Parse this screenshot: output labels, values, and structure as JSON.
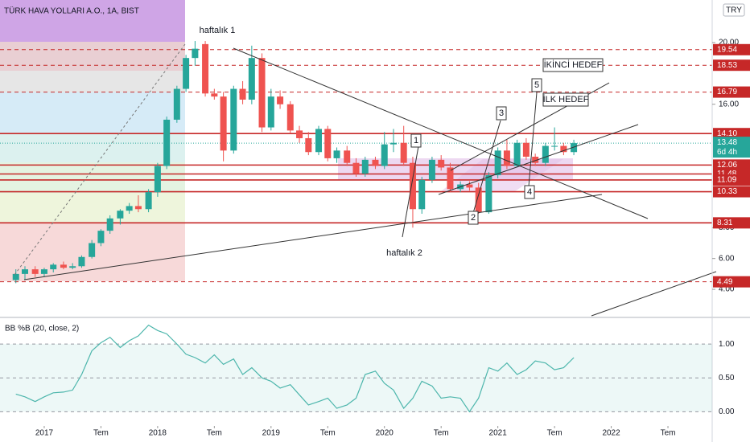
{
  "header": {
    "title": "TÜRK HAVA YOLLARI A.O., 1A, BIST",
    "currency": "TRY"
  },
  "chart_data": [
    {
      "type": "candlestick",
      "x": [
        2016.75,
        2016.83,
        2016.92,
        2017.0,
        2017.08,
        2017.17,
        2017.25,
        2017.33,
        2017.42,
        2017.5,
        2017.58,
        2017.67,
        2017.75,
        2017.83,
        2017.92,
        2018.0,
        2018.08,
        2018.17,
        2018.25,
        2018.33,
        2018.42,
        2018.5,
        2018.58,
        2018.67,
        2018.75,
        2018.83,
        2018.92,
        2019.0,
        2019.08,
        2019.17,
        2019.25,
        2019.33,
        2019.42,
        2019.5,
        2019.58,
        2019.67,
        2019.75,
        2019.83,
        2019.92,
        2020.0,
        2020.08,
        2020.17,
        2020.25,
        2020.33,
        2020.42,
        2020.5,
        2020.58,
        2020.67,
        2020.75,
        2020.83,
        2020.92,
        2021.0,
        2021.08,
        2021.17,
        2021.25,
        2021.33,
        2021.42,
        2021.5,
        2021.58,
        2021.67
      ],
      "open": [
        4.6,
        5.0,
        5.3,
        5.0,
        5.3,
        5.6,
        5.4,
        5.5,
        6.1,
        7.0,
        7.8,
        8.6,
        9.1,
        9.4,
        9.2,
        10.3,
        12.0,
        15.0,
        17.0,
        19.0,
        19.9,
        16.7,
        16.5,
        13.0,
        17.0,
        16.3,
        19.0,
        14.5,
        16.5,
        16.0,
        14.3,
        13.8,
        12.9,
        14.4,
        12.5,
        13.0,
        12.2,
        11.5,
        12.4,
        12.0,
        13.4,
        13.5,
        12.2,
        9.2,
        11.1,
        12.4,
        11.9,
        10.5,
        10.8,
        10.6,
        9.0,
        11.4,
        13.0,
        12.0,
        13.5,
        12.6,
        12.2,
        13.3,
        13.3,
        12.9
      ],
      "high": [
        5.3,
        5.5,
        5.5,
        5.4,
        5.7,
        5.8,
        5.7,
        6.2,
        7.2,
        7.9,
        8.8,
        9.2,
        9.6,
        10.1,
        10.5,
        12.2,
        15.2,
        17.2,
        19.2,
        20.1,
        20.1,
        17.0,
        16.8,
        17.2,
        17.5,
        19.8,
        19.3,
        17.0,
        16.9,
        16.2,
        14.6,
        14.2,
        14.6,
        14.6,
        13.2,
        13.3,
        12.5,
        12.6,
        12.6,
        14.2,
        14.4,
        14.6,
        12.6,
        11.3,
        12.6,
        12.7,
        12.2,
        11.0,
        11.0,
        10.9,
        11.6,
        13.2,
        13.7,
        13.7,
        13.8,
        12.8,
        13.5,
        14.5,
        13.5,
        13.7
      ],
      "low": [
        4.4,
        4.6,
        4.8,
        4.8,
        5.1,
        5.3,
        5.3,
        5.4,
        6.0,
        6.8,
        7.6,
        8.2,
        8.9,
        9.0,
        9.0,
        10.0,
        11.8,
        14.8,
        16.8,
        18.5,
        16.5,
        16.3,
        12.3,
        12.8,
        16.0,
        16.0,
        14.2,
        14.3,
        15.7,
        14.1,
        13.5,
        12.7,
        12.7,
        12.3,
        12.2,
        12.0,
        11.3,
        11.3,
        11.8,
        11.8,
        12.9,
        12.0,
        8.0,
        8.9,
        10.9,
        11.7,
        10.3,
        10.3,
        10.4,
        8.9,
        8.9,
        11.2,
        11.8,
        11.9,
        12.4,
        12.0,
        12.0,
        13.0,
        12.7,
        12.7
      ],
      "close": [
        5.0,
        5.3,
        5.0,
        5.3,
        5.6,
        5.4,
        5.5,
        6.1,
        7.0,
        7.8,
        8.6,
        9.1,
        9.4,
        9.2,
        10.3,
        12.0,
        15.0,
        17.0,
        19.0,
        19.6,
        16.7,
        16.5,
        13.0,
        17.0,
        16.3,
        19.0,
        14.5,
        16.5,
        16.0,
        14.3,
        13.8,
        12.9,
        14.4,
        12.5,
        13.0,
        12.2,
        11.5,
        12.4,
        12.0,
        13.4,
        13.5,
        12.2,
        9.2,
        11.1,
        12.4,
        11.9,
        10.5,
        10.8,
        10.6,
        9.0,
        11.4,
        13.0,
        12.0,
        13.5,
        12.6,
        12.2,
        13.3,
        13.3,
        12.9,
        13.48
      ],
      "up_color": "#26a69a",
      "down_color": "#ef5350",
      "xlim": [
        2016.61,
        2022.89
      ],
      "ylim": [
        2.18,
        22.76
      ],
      "yticks": [
        {
          "value": 20,
          "label": "20.00"
        },
        {
          "value": 16,
          "label": "16.00"
        },
        {
          "value": 8,
          "label": "8.00"
        },
        {
          "value": 6,
          "label": "6.00"
        },
        {
          "value": 4,
          "label": "4.00"
        }
      ],
      "levels": [
        {
          "value": 19.54,
          "dashed": true
        },
        {
          "value": 18.53,
          "dashed": true
        },
        {
          "value": 16.79,
          "dashed": true
        },
        {
          "value": 14.1,
          "label": "14.10",
          "dashed": false
        },
        {
          "value": 12.06,
          "dashed": false
        },
        {
          "value": 11.48,
          "dashed": false
        },
        {
          "value": 11.09,
          "dashed": false
        },
        {
          "value": 10.33,
          "dashed": false
        },
        {
          "value": 8.31,
          "dashed": false
        },
        {
          "value": 4.49,
          "dashed": true
        }
      ],
      "level_color": "#c62828",
      "last_price": {
        "value": 13.48,
        "countdown": "6d 4h"
      },
      "annotations": [
        "haftalık 1",
        "haftalık 2",
        "İKİNCİ HEDEF",
        "İLK HEDEF",
        "1",
        "2",
        "3",
        "4",
        "5"
      ]
    },
    {
      "type": "line",
      "title": "BB %B (20, close, 2)",
      "x": [
        2016.75,
        2016.83,
        2016.92,
        2017.0,
        2017.08,
        2017.17,
        2017.25,
        2017.33,
        2017.42,
        2017.5,
        2017.58,
        2017.67,
        2017.75,
        2017.83,
        2017.92,
        2018.0,
        2018.08,
        2018.17,
        2018.25,
        2018.33,
        2018.42,
        2018.5,
        2018.58,
        2018.67,
        2018.75,
        2018.83,
        2018.92,
        2019.0,
        2019.08,
        2019.17,
        2019.25,
        2019.33,
        2019.42,
        2019.5,
        2019.58,
        2019.67,
        2019.75,
        2019.83,
        2019.92,
        2020.0,
        2020.08,
        2020.17,
        2020.25,
        2020.33,
        2020.42,
        2020.5,
        2020.58,
        2020.67,
        2020.75,
        2020.83,
        2020.92,
        2021.0,
        2021.08,
        2021.17,
        2021.25,
        2021.33,
        2021.42,
        2021.5,
        2021.58,
        2021.67
      ],
      "values": [
        0.26,
        0.22,
        0.15,
        0.22,
        0.28,
        0.29,
        0.32,
        0.55,
        0.9,
        1.02,
        1.1,
        0.95,
        1.05,
        1.12,
        1.28,
        1.2,
        1.15,
        1.0,
        0.85,
        0.8,
        0.72,
        0.84,
        0.7,
        0.78,
        0.55,
        0.65,
        0.5,
        0.45,
        0.35,
        0.4,
        0.25,
        0.1,
        0.15,
        0.2,
        0.05,
        0.1,
        0.2,
        0.55,
        0.6,
        0.42,
        0.32,
        0.05,
        0.2,
        0.45,
        0.38,
        0.2,
        0.22,
        0.2,
        0.0,
        0.2,
        0.65,
        0.6,
        0.72,
        0.55,
        0.62,
        0.75,
        0.72,
        0.62,
        0.65,
        0.8
      ],
      "color": "#4db6ac",
      "xlim": [
        2016.61,
        2022.89
      ],
      "ylim": [
        -0.21,
        1.37
      ],
      "yticks": [
        {
          "value": 1,
          "label": "1.00"
        },
        {
          "value": 0.5,
          "label": "0.50"
        },
        {
          "value": 0,
          "label": "0.00"
        }
      ],
      "xticks": [
        2017,
        {
          "value": 2017.5,
          "label": "Tem"
        },
        2018,
        {
          "value": 2018.5,
          "label": "Tem"
        },
        2019,
        {
          "value": 2019.5,
          "label": "Tem"
        },
        2020,
        {
          "value": 2020.5,
          "label": "Tem"
        },
        2021,
        {
          "value": 2021.5,
          "label": "Tem"
        },
        2022,
        {
          "value": 2022.5,
          "label": "Tem"
        }
      ]
    }
  ]
}
